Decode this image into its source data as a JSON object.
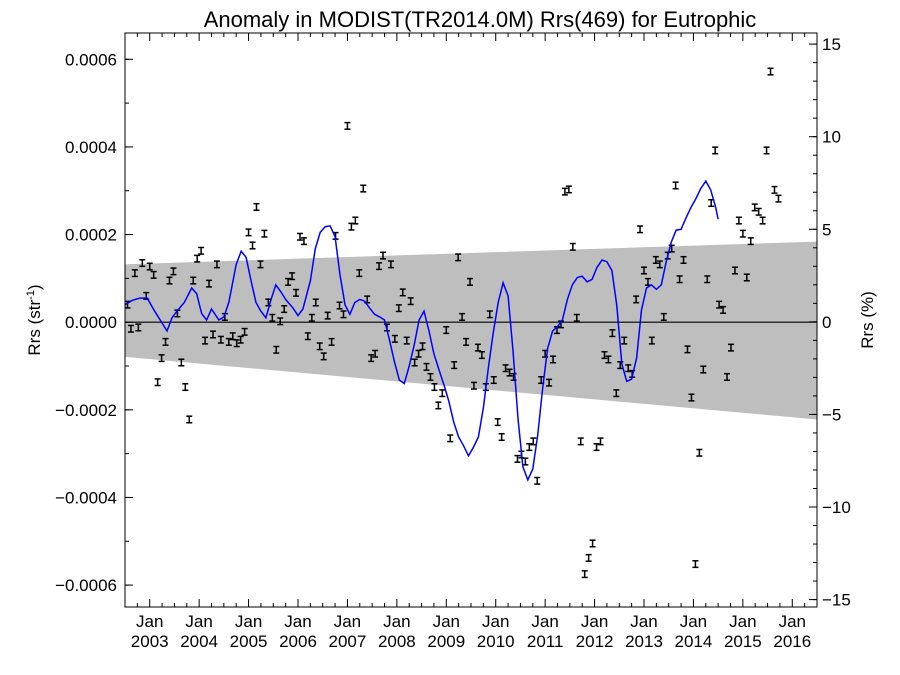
{
  "chart_data": {
    "type": "scatter",
    "title": "Anomaly in MODIST(TR2014.0M) Rrs(469) for Eutrophic",
    "ylabel_left": "Rrs (str",
    "ylabel_left_sup": "-1",
    "ylabel_left_close": ")",
    "ylabel_right": "Rrs (%)",
    "x_range": [
      2002.5,
      2016.5
    ],
    "y_range": [
      -0.00065,
      0.00066
    ],
    "y2_range": [
      -15.4,
      15.6
    ],
    "x_tick_month": "Jan",
    "x_ticks": [
      {
        "x": 2003,
        "label": "2003"
      },
      {
        "x": 2004,
        "label": "2004"
      },
      {
        "x": 2005,
        "label": "2005"
      },
      {
        "x": 2006,
        "label": "2006"
      },
      {
        "x": 2007,
        "label": "2007"
      },
      {
        "x": 2008,
        "label": "2008"
      },
      {
        "x": 2009,
        "label": "2009"
      },
      {
        "x": 2010,
        "label": "2010"
      },
      {
        "x": 2011,
        "label": "2011"
      },
      {
        "x": 2012,
        "label": "2012"
      },
      {
        "x": 2013,
        "label": "2013"
      },
      {
        "x": 2014,
        "label": "2014"
      },
      {
        "x": 2015,
        "label": "2015"
      },
      {
        "x": 2016,
        "label": "2016"
      }
    ],
    "y_ticks": [
      {
        "v": 0.0006,
        "label": "0.0006"
      },
      {
        "v": 0.0004,
        "label": "0.0004"
      },
      {
        "v": 0.0002,
        "label": "0.0002"
      },
      {
        "v": 0.0,
        "label": "0.0000"
      },
      {
        "v": -0.0002,
        "label": "−0.0002"
      },
      {
        "v": -0.0004,
        "label": "−0.0004"
      },
      {
        "v": -0.0006,
        "label": "−0.0006"
      }
    ],
    "y2_ticks": [
      {
        "v": 15,
        "label": "15"
      },
      {
        "v": 10,
        "label": "10"
      },
      {
        "v": 5,
        "label": "5"
      },
      {
        "v": 0,
        "label": "0"
      },
      {
        "v": -5,
        "label": "−5"
      },
      {
        "v": -10,
        "label": "−10"
      },
      {
        "v": -15,
        "label": "−15"
      }
    ],
    "band": {
      "x": [
        2002.5,
        2016.5
      ],
      "upper": [
        0.000132,
        0.000184
      ],
      "lower": [
        -7.9e-05,
        -0.000222
      ],
      "color": "#bebebe"
    },
    "error_half": 7.5e-06,
    "colors": {
      "points": "#000000",
      "smooth": "#0000ff",
      "zero": "#000000"
    },
    "points": [
      [
        2002.55,
        4e-05
      ],
      [
        2002.62,
        -1.5e-05
      ],
      [
        2002.7,
        0.000112
      ],
      [
        2002.77,
        -1.2e-05
      ],
      [
        2002.85,
        0.000135
      ],
      [
        2002.93,
        6e-05
      ],
      [
        2003.0,
        0.000127
      ],
      [
        2003.08,
        0.000108
      ],
      [
        2003.16,
        -0.000137
      ],
      [
        2003.24,
        -8.2e-05
      ],
      [
        2003.32,
        -4.5e-05
      ],
      [
        2003.4,
        9.5e-05
      ],
      [
        2003.48,
        0.000116
      ],
      [
        2003.56,
        2e-05
      ],
      [
        2003.64,
        -9.2e-05
      ],
      [
        2003.72,
        -0.000148
      ],
      [
        2003.8,
        -0.000222
      ],
      [
        2003.88,
        9.5e-05
      ],
      [
        2003.96,
        0.000145
      ],
      [
        2004.04,
        0.000163
      ],
      [
        2004.12,
        -4.2e-05
      ],
      [
        2004.2,
        8.8e-05
      ],
      [
        2004.28,
        -2.8e-05
      ],
      [
        2004.36,
        0.000132
      ],
      [
        2004.44,
        -4e-05
      ],
      [
        2004.52,
        1.2e-05
      ],
      [
        2004.6,
        -4.5e-05
      ],
      [
        2004.68,
        -3.2e-05
      ],
      [
        2004.76,
        -4.8e-05
      ],
      [
        2004.84,
        -4e-05
      ],
      [
        2004.92,
        -2.2e-05
      ],
      [
        2005.0,
        0.000205
      ],
      [
        2005.08,
        0.000175
      ],
      [
        2005.16,
        0.000263
      ],
      [
        2005.24,
        0.000132
      ],
      [
        2005.32,
        0.000202
      ],
      [
        2005.4,
        4.5e-05
      ],
      [
        2005.48,
        1e-05
      ],
      [
        2005.56,
        -6.3e-05
      ],
      [
        2005.64,
        2e-06
      ],
      [
        2005.72,
        3e-05
      ],
      [
        2005.8,
        9.2e-05
      ],
      [
        2005.88,
        0.000105
      ],
      [
        2005.96,
        6.7e-05
      ],
      [
        2006.04,
        0.000195
      ],
      [
        2006.12,
        0.000185
      ],
      [
        2006.2,
        -3.2e-05
      ],
      [
        2006.28,
        1e-05
      ],
      [
        2006.36,
        4.5e-05
      ],
      [
        2006.44,
        -5.5e-05
      ],
      [
        2006.52,
        -7.8e-05
      ],
      [
        2006.6,
        1.5e-05
      ],
      [
        2006.68,
        -4.5e-05
      ],
      [
        2006.76,
        0.000197
      ],
      [
        2006.84,
        3.8e-05
      ],
      [
        2006.92,
        1.8e-05
      ],
      [
        2007.0,
        0.000448
      ],
      [
        2007.08,
        0.000218
      ],
      [
        2007.16,
        0.000232
      ],
      [
        2007.24,
        0.000112
      ],
      [
        2007.32,
        0.000305
      ],
      [
        2007.4,
        5.2e-05
      ],
      [
        2007.48,
        -8.2e-05
      ],
      [
        2007.56,
        -7.2e-05
      ],
      [
        2007.64,
        0.000128
      ],
      [
        2007.72,
        0.000152
      ],
      [
        2007.8,
        -1.2e-05
      ],
      [
        2007.88,
        0.000132
      ],
      [
        2007.96,
        -3.8e-05
      ],
      [
        2008.04,
        3.2e-05
      ],
      [
        2008.12,
        6.8e-05
      ],
      [
        2008.2,
        -4.2e-05
      ],
      [
        2008.28,
        4.8e-05
      ],
      [
        2008.36,
        -9.2e-05
      ],
      [
        2008.44,
        -7.2e-05
      ],
      [
        2008.52,
        -5.5e-05
      ],
      [
        2008.6,
        -0.000102
      ],
      [
        2008.68,
        -0.000125
      ],
      [
        2008.76,
        -0.000148
      ],
      [
        2008.84,
        -0.00019
      ],
      [
        2008.92,
        -0.000162
      ],
      [
        2009.0,
        -1.8e-05
      ],
      [
        2009.08,
        -0.000265
      ],
      [
        2009.16,
        -9.8e-05
      ],
      [
        2009.24,
        0.000148
      ],
      [
        2009.32,
        1.2e-05
      ],
      [
        2009.4,
        -4.5e-05
      ],
      [
        2009.48,
        9.2e-05
      ],
      [
        2009.56,
        -0.000145
      ],
      [
        2009.64,
        -5.8e-05
      ],
      [
        2009.72,
        -7.5e-05
      ],
      [
        2009.8,
        -0.000148
      ],
      [
        2009.88,
        1.8e-05
      ],
      [
        2009.96,
        -0.000132
      ],
      [
        2010.04,
        -0.000228
      ],
      [
        2010.12,
        -0.000262
      ],
      [
        2010.2,
        -0.000105
      ],
      [
        2010.28,
        -0.000115
      ],
      [
        2010.36,
        -0.000125
      ],
      [
        2010.44,
        -0.000312
      ],
      [
        2010.52,
        -0.000302
      ],
      [
        2010.6,
        -0.000318
      ],
      [
        2010.68,
        -0.000285
      ],
      [
        2010.76,
        -0.000272
      ],
      [
        2010.84,
        -0.000362
      ],
      [
        2010.92,
        -0.000132
      ],
      [
        2011.0,
        -7.2e-05
      ],
      [
        2011.08,
        -0.000138
      ],
      [
        2011.16,
        -8.5e-05
      ],
      [
        2011.24,
        -1.8e-05
      ],
      [
        2011.32,
        -5e-06
      ],
      [
        2011.4,
        0.000298
      ],
      [
        2011.48,
        0.000303
      ],
      [
        2011.56,
        0.000172
      ],
      [
        2011.64,
        1e-05
      ],
      [
        2011.72,
        -0.000272
      ],
      [
        2011.8,
        -0.000575
      ],
      [
        2011.88,
        -0.000538
      ],
      [
        2011.96,
        -0.000505
      ],
      [
        2012.04,
        -0.000285
      ],
      [
        2012.12,
        -0.000272
      ],
      [
        2012.2,
        -7.5e-05
      ],
      [
        2012.28,
        -8.5e-05
      ],
      [
        2012.36,
        -2.5e-05
      ],
      [
        2012.44,
        -0.000162
      ],
      [
        2012.52,
        -9.8e-05
      ],
      [
        2012.6,
        -4.2e-05
      ],
      [
        2012.68,
        -0.000105
      ],
      [
        2012.76,
        -0.000118
      ],
      [
        2012.84,
        5.2e-05
      ],
      [
        2012.92,
        0.000212
      ],
      [
        2013.0,
        0.000118
      ],
      [
        2013.08,
        9.2e-05
      ],
      [
        2013.16,
        -4.2e-05
      ],
      [
        2013.24,
        0.000142
      ],
      [
        2013.32,
        0.000132
      ],
      [
        2013.4,
        1.2e-05
      ],
      [
        2013.48,
        0.000152
      ],
      [
        2013.56,
        0.000168
      ],
      [
        2013.64,
        0.000312
      ],
      [
        2013.72,
        9.8e-05
      ],
      [
        2013.8,
        0.000142
      ],
      [
        2013.88,
        -6.2e-05
      ],
      [
        2013.96,
        -0.000172
      ],
      [
        2014.04,
        -0.000552
      ],
      [
        2014.12,
        -0.000298
      ],
      [
        2014.2,
        -0.000108
      ],
      [
        2014.28,
        9.8e-05
      ],
      [
        2014.36,
        0.000272
      ],
      [
        2014.44,
        0.000392
      ],
      [
        2014.52,
        4e-05
      ],
      [
        2014.6,
        2.8e-05
      ],
      [
        2014.68,
        -0.000125
      ],
      [
        2014.76,
        -5.8e-05
      ],
      [
        2014.84,
        0.000118
      ],
      [
        2014.92,
        0.000232
      ],
      [
        2015.0,
        0.000202
      ],
      [
        2015.08,
        0.000102
      ],
      [
        2015.16,
        0.000185
      ],
      [
        2015.24,
        0.000262
      ],
      [
        2015.32,
        0.000252
      ],
      [
        2015.4,
        0.000232
      ],
      [
        2015.48,
        0.000392
      ],
      [
        2015.56,
        0.000572
      ],
      [
        2015.64,
        0.000302
      ],
      [
        2015.72,
        0.000282
      ]
    ],
    "smooth": [
      [
        2002.5,
        4e-05
      ],
      [
        2002.65,
        5e-05
      ],
      [
        2002.8,
        5.5e-05
      ],
      [
        2002.95,
        5.5e-05
      ],
      [
        2003.1,
        2.5e-05
      ],
      [
        2003.25,
        -2e-06
      ],
      [
        2003.35,
        -2e-05
      ],
      [
        2003.45,
        1e-05
      ],
      [
        2003.55,
        2.5e-05
      ],
      [
        2003.7,
        4.5e-05
      ],
      [
        2003.85,
        7.8e-05
      ],
      [
        2003.95,
        6.5e-05
      ],
      [
        2004.05,
        2e-05
      ],
      [
        2004.15,
        5e-06
      ],
      [
        2004.25,
        3e-05
      ],
      [
        2004.4,
        5e-06
      ],
      [
        2004.5,
        1.2e-05
      ],
      [
        2004.6,
        4.5e-05
      ],
      [
        2004.75,
        0.000132
      ],
      [
        2004.85,
        0.000162
      ],
      [
        2004.95,
        0.000148
      ],
      [
        2005.05,
        9.5e-05
      ],
      [
        2005.15,
        4.5e-05
      ],
      [
        2005.25,
        2.5e-05
      ],
      [
        2005.35,
        1e-05
      ],
      [
        2005.45,
        5e-05
      ],
      [
        2005.55,
        8.5e-05
      ],
      [
        2005.65,
        7e-05
      ],
      [
        2005.75,
        5.2e-05
      ],
      [
        2005.9,
        3.2e-05
      ],
      [
        2006.0,
        1.5e-05
      ],
      [
        2006.1,
        3e-05
      ],
      [
        2006.25,
        9.5e-05
      ],
      [
        2006.35,
        0.000168
      ],
      [
        2006.45,
        0.000205
      ],
      [
        2006.55,
        0.000218
      ],
      [
        2006.65,
        0.00022
      ],
      [
        2006.75,
        0.000195
      ],
      [
        2006.85,
        0.000108
      ],
      [
        2006.95,
        4e-05
      ],
      [
        2007.05,
        1.8e-05
      ],
      [
        2007.15,
        4.5e-05
      ],
      [
        2007.25,
        5.2e-05
      ],
      [
        2007.35,
        4.8e-05
      ],
      [
        2007.45,
        3.2e-05
      ],
      [
        2007.55,
        1.8e-05
      ],
      [
        2007.65,
        1.2e-05
      ],
      [
        2007.75,
        5e-06
      ],
      [
        2007.85,
        -4e-05
      ],
      [
        2007.95,
        -9e-05
      ],
      [
        2008.05,
        -0.000132
      ],
      [
        2008.15,
        -0.00014
      ],
      [
        2008.25,
        -0.0001
      ],
      [
        2008.35,
        -5.2e-05
      ],
      [
        2008.45,
        5e-06
      ],
      [
        2008.55,
        2.5e-05
      ],
      [
        2008.65,
        -2e-05
      ],
      [
        2008.75,
        -7.2e-05
      ],
      [
        2008.85,
        -0.000108
      ],
      [
        2008.95,
        -0.000142
      ],
      [
        2009.05,
        -0.00018
      ],
      [
        2009.15,
        -0.000228
      ],
      [
        2009.25,
        -0.000262
      ],
      [
        2009.35,
        -0.000282
      ],
      [
        2009.45,
        -0.000305
      ],
      [
        2009.55,
        -0.000285
      ],
      [
        2009.65,
        -0.000262
      ],
      [
        2009.75,
        -0.000195
      ],
      [
        2009.85,
        -0.000105
      ],
      [
        2009.95,
        -2.5e-05
      ],
      [
        2010.05,
        4.5e-05
      ],
      [
        2010.15,
        9e-05
      ],
      [
        2010.25,
        6e-05
      ],
      [
        2010.35,
        -6.5e-05
      ],
      [
        2010.45,
        -0.00022
      ],
      [
        2010.55,
        -0.00033
      ],
      [
        2010.65,
        -0.00036
      ],
      [
        2010.75,
        -0.000335
      ],
      [
        2010.85,
        -0.000258
      ],
      [
        2010.95,
        -0.00015
      ],
      [
        2011.05,
        -6e-05
      ],
      [
        2011.15,
        -2e-05
      ],
      [
        2011.25,
        -1e-05
      ],
      [
        2011.35,
        5e-06
      ],
      [
        2011.45,
        5.2e-05
      ],
      [
        2011.55,
        8.5e-05
      ],
      [
        2011.65,
        0.000102
      ],
      [
        2011.75,
        0.000105
      ],
      [
        2011.85,
        9.2e-05
      ],
      [
        2011.95,
        9.8e-05
      ],
      [
        2012.05,
        0.000125
      ],
      [
        2012.15,
        0.000142
      ],
      [
        2012.25,
        0.000138
      ],
      [
        2012.35,
        0.000118
      ],
      [
        2012.45,
        3.8e-05
      ],
      [
        2012.55,
        -9.5e-05
      ],
      [
        2012.65,
        -0.000135
      ],
      [
        2012.75,
        -0.00013
      ],
      [
        2012.85,
        -8.2e-05
      ],
      [
        2012.95,
        2.8e-05
      ],
      [
        2013.05,
        7.8e-05
      ],
      [
        2013.15,
        8.5e-05
      ],
      [
        2013.25,
        7.5e-05
      ],
      [
        2013.35,
        8.5e-05
      ],
      [
        2013.45,
        0.000138
      ],
      [
        2013.55,
        0.000182
      ],
      [
        2013.65,
        0.00021
      ],
      [
        2013.75,
        0.000212
      ],
      [
        2013.85,
        0.000238
      ],
      [
        2013.95,
        0.000262
      ],
      [
        2014.05,
        0.000282
      ],
      [
        2014.15,
        0.000305
      ],
      [
        2014.25,
        0.000322
      ],
      [
        2014.35,
        0.000302
      ],
      [
        2014.45,
        0.000262
      ],
      [
        2014.5,
        0.000235
      ]
    ]
  }
}
